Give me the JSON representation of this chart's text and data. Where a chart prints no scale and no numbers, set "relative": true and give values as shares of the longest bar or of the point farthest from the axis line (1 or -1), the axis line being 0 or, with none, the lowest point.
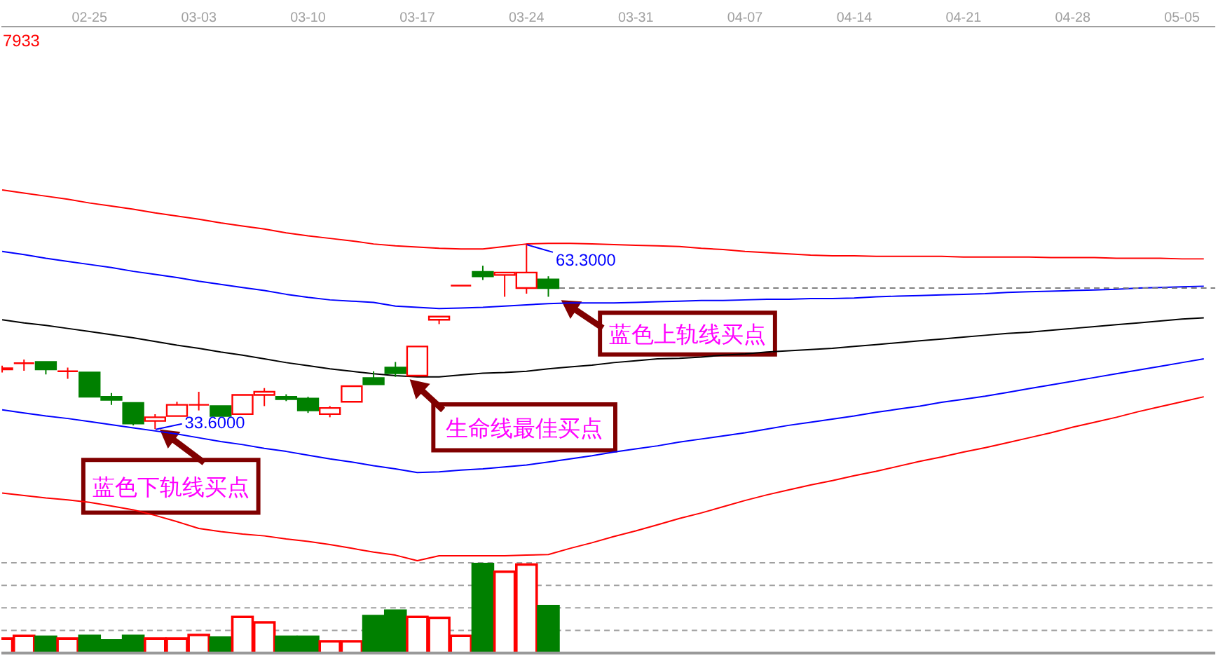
{
  "chart_data": [
    {
      "type": "candlestick",
      "categories": [
        null,
        null,
        null,
        null,
        "02-25",
        null,
        null,
        null,
        null,
        "03-03",
        null,
        null,
        null,
        null,
        "03-10",
        null,
        null,
        null,
        null,
        "03-17",
        null,
        null,
        null,
        null,
        "03-24",
        null,
        null,
        null,
        null,
        "03-31",
        null,
        null,
        null,
        null,
        "04-07",
        null,
        null,
        null,
        null,
        "04-14",
        null,
        null,
        null,
        null,
        "04-21",
        null,
        null,
        null,
        null,
        "04-28",
        null,
        null,
        null,
        null,
        "05-05",
        null
      ],
      "ohlc": [
        [
          43.2,
          43.8,
          42.7,
          43.4
        ],
        [
          44.2,
          44.8,
          43.0,
          44.2
        ],
        [
          44.4,
          44.4,
          42.4,
          43.2
        ],
        [
          42.9,
          43.5,
          41.7,
          42.9
        ],
        [
          42.7,
          42.7,
          38.8,
          38.8
        ],
        [
          38.8,
          39.4,
          37.5,
          38.3
        ],
        [
          37.8,
          37.8,
          34.2,
          34.5
        ],
        [
          34.9,
          36.0,
          33.6,
          35.5
        ],
        [
          35.7,
          38.0,
          35.7,
          37.5
        ],
        [
          37.5,
          39.6,
          36.6,
          37.5
        ],
        [
          37.3,
          37.3,
          35.7,
          35.7
        ],
        [
          36.0,
          39.1,
          36.0,
          39.1
        ],
        [
          39.1,
          40.2,
          37.3,
          39.6
        ],
        [
          38.8,
          39.2,
          38.1,
          38.4
        ],
        [
          38.5,
          38.8,
          36.2,
          36.6
        ],
        [
          36.0,
          37.3,
          35.5,
          37.0
        ],
        [
          38.0,
          40.5,
          38.0,
          40.5
        ],
        [
          41.8,
          42.9,
          40.8,
          40.8
        ],
        [
          43.5,
          44.4,
          42.0,
          42.6
        ],
        [
          42.2,
          46.9,
          42.2,
          46.9
        ],
        [
          51.2,
          51.7,
          50.5,
          51.7
        ],
        [
          56.7,
          56.7,
          56.7,
          56.7
        ],
        [
          58.9,
          59.9,
          57.6,
          58.2
        ],
        [
          58.4,
          58.8,
          54.9,
          58.8
        ],
        [
          56.3,
          63.3,
          55.4,
          58.8
        ],
        [
          57.7,
          58.2,
          54.9,
          56.3
        ],
        null,
        null,
        null,
        null,
        null,
        null,
        null,
        null,
        null,
        null,
        null,
        null,
        null,
        null,
        null,
        null,
        null,
        null,
        null,
        null,
        null,
        null,
        null,
        null,
        null,
        null,
        null,
        null,
        null,
        null
      ],
      "colors": [
        "#ff0000",
        "#ff0000",
        "#008000",
        "#ff0000",
        "#008000",
        "#008000",
        "#008000",
        "#ff0000",
        "#ff0000",
        "#ff0000",
        "#008000",
        "#ff0000",
        "#ff0000",
        "#008000",
        "#008000",
        "#ff0000",
        "#ff0000",
        "#008000",
        "#008000",
        "#ff0000",
        "#ff0000",
        "#ff0000",
        "#008000",
        "#ff0000",
        "#ff0000",
        "#008000",
        null,
        null,
        null,
        null,
        null,
        null,
        null,
        null,
        null,
        null,
        null,
        null,
        null,
        null,
        null,
        null,
        null,
        null,
        null,
        null,
        null,
        null,
        null,
        null,
        null,
        null,
        null,
        null,
        null,
        null
      ],
      "series": [
        {
          "type": "line",
          "color": "#ff0000",
          "values": [
            72.1,
            71.6,
            71.1,
            70.6,
            70.0,
            69.5,
            69.0,
            68.4,
            67.9,
            67.4,
            66.8,
            66.3,
            65.8,
            65.2,
            64.7,
            64.3,
            63.9,
            63.4,
            63.1,
            62.9,
            62.7,
            62.6,
            62.6,
            63.0,
            63.4,
            63.5,
            63.5,
            63.4,
            63.3,
            63.2,
            63.1,
            63.0,
            62.7,
            62.5,
            62.2,
            62.0,
            61.8,
            61.6,
            61.5,
            61.5,
            61.4,
            61.4,
            61.4,
            61.4,
            61.3,
            61.3,
            61.3,
            61.3,
            61.2,
            61.2,
            61.2,
            61.1,
            61.1,
            61.1,
            61.0,
            61.0
          ]
        },
        {
          "type": "line",
          "color": "#0000ff",
          "values": [
            62.2,
            61.7,
            61.1,
            60.6,
            60.1,
            59.6,
            59.0,
            58.5,
            58.0,
            57.4,
            56.9,
            56.4,
            55.9,
            55.3,
            54.8,
            54.4,
            54.2,
            54.0,
            53.4,
            53.2,
            53.0,
            53.1,
            53.2,
            53.4,
            53.6,
            53.8,
            53.9,
            53.9,
            53.9,
            54.0,
            54.1,
            54.2,
            54.3,
            54.3,
            54.4,
            54.5,
            54.5,
            54.6,
            54.6,
            54.7,
            54.9,
            55.0,
            55.1,
            55.2,
            55.3,
            55.4,
            55.6,
            55.7,
            55.8,
            55.9,
            56.0,
            56.1,
            56.3,
            56.4,
            56.5,
            56.6
          ]
        },
        {
          "type": "line",
          "color": "#000000",
          "values": [
            51.2,
            50.7,
            50.3,
            49.8,
            49.3,
            48.8,
            48.3,
            47.7,
            47.1,
            46.6,
            46.0,
            45.5,
            44.9,
            44.3,
            43.8,
            43.3,
            42.9,
            42.5,
            42.2,
            42.0,
            42.0,
            42.3,
            42.6,
            42.7,
            42.9,
            43.3,
            43.6,
            43.9,
            44.3,
            44.6,
            44.9,
            45.0,
            45.2,
            45.5,
            45.7,
            46.0,
            46.2,
            46.4,
            46.6,
            46.9,
            47.2,
            47.5,
            47.8,
            48.1,
            48.4,
            48.7,
            49.0,
            49.2,
            49.5,
            49.8,
            50.1,
            50.4,
            50.7,
            51.0,
            51.3,
            51.5
          ]
        },
        {
          "type": "line",
          "color": "#0000ff",
          "values": [
            36.7,
            36.2,
            35.7,
            35.3,
            34.8,
            34.3,
            33.8,
            33.3,
            32.8,
            32.2,
            31.6,
            31.1,
            30.5,
            30.0,
            29.4,
            28.8,
            28.3,
            27.7,
            27.2,
            26.6,
            26.7,
            27.0,
            27.2,
            27.5,
            27.8,
            28.3,
            28.8,
            29.3,
            29.9,
            30.4,
            30.9,
            31.5,
            32.0,
            32.5,
            33.0,
            33.6,
            34.2,
            34.7,
            35.2,
            35.7,
            36.3,
            36.8,
            37.3,
            37.9,
            38.4,
            38.9,
            39.5,
            40.1,
            40.7,
            41.3,
            41.9,
            42.5,
            43.1,
            43.7,
            44.3,
            44.9
          ]
        },
        {
          "type": "line",
          "color": "#ff0000",
          "values": [
            23.3,
            22.9,
            22.5,
            22.2,
            21.8,
            21.2,
            20.6,
            19.7,
            18.7,
            17.6,
            17.1,
            16.7,
            16.4,
            15.9,
            15.5,
            15.0,
            14.4,
            13.8,
            13.3,
            12.4,
            13.2,
            13.2,
            13.2,
            13.2,
            13.3,
            13.4,
            14.4,
            15.3,
            16.3,
            17.2,
            18.2,
            19.2,
            20.1,
            21.1,
            22.1,
            23.0,
            23.8,
            24.6,
            25.3,
            26.1,
            26.8,
            27.6,
            28.4,
            29.1,
            29.9,
            30.6,
            31.4,
            32.2,
            33.0,
            33.9,
            34.7,
            35.5,
            36.4,
            37.2,
            38.0,
            38.8
          ]
        }
      ],
      "ylim": [
        12.3,
        98.4
      ],
      "tick_labels": "x",
      "ref_lines": [
        {
          "axis": "y",
          "value": 56.3,
          "color": "#808080",
          "line_style": "dashed"
        }
      ],
      "annotations": [
        "7933",
        {
          "text": "63.3000",
          "y": 63.3
        },
        "33.6000",
        "蓝色上轨线买点",
        "生命线最佳买点",
        "蓝色下轨线买点"
      ]
    },
    {
      "type": "bar",
      "categories": [
        null,
        null,
        null,
        null,
        null,
        null,
        null,
        null,
        null,
        null,
        null,
        null,
        null,
        null,
        null,
        null,
        null,
        null,
        null,
        null,
        null,
        null,
        null,
        null,
        null,
        null,
        null,
        null,
        null,
        null,
        null,
        null,
        null,
        null,
        null,
        null,
        null,
        null,
        null,
        null,
        null,
        null,
        null,
        null,
        null,
        null,
        null,
        null,
        null,
        null,
        null,
        null,
        null,
        null,
        null,
        null
      ],
      "relative": true,
      "values": [
        0.16,
        0.19,
        0.18,
        0.16,
        0.19,
        0.14,
        0.19,
        0.16,
        0.16,
        0.2,
        0.17,
        0.4,
        0.34,
        0.18,
        0.18,
        0.13,
        0.13,
        0.41,
        0.47,
        0.4,
        0.39,
        0.19,
        1,
        0.9,
        0.98,
        0.52,
        null,
        null,
        null,
        null,
        null,
        null,
        null,
        null,
        null,
        null,
        null,
        null,
        null,
        null,
        null,
        null,
        null,
        null,
        null,
        null,
        null,
        null,
        null,
        null,
        null,
        null,
        null,
        null,
        null,
        null
      ],
      "colors": [
        "#ff0000",
        "#ff0000",
        "#008000",
        "#ff0000",
        "#008000",
        "#008000",
        "#008000",
        "#ff0000",
        "#ff0000",
        "#ff0000",
        "#008000",
        "#ff0000",
        "#ff0000",
        "#008000",
        "#008000",
        "#ff0000",
        "#ff0000",
        "#008000",
        "#008000",
        "#ff0000",
        "#ff0000",
        "#ff0000",
        "#008000",
        "#ff0000",
        "#ff0000",
        "#008000",
        null,
        null,
        null,
        null,
        null,
        null,
        null,
        null,
        null,
        null,
        null,
        null,
        null,
        null,
        null,
        null,
        null,
        null,
        null,
        null,
        null,
        null,
        null,
        null,
        null,
        null,
        null,
        null,
        null,
        null
      ],
      "grid": "y"
    }
  ]
}
